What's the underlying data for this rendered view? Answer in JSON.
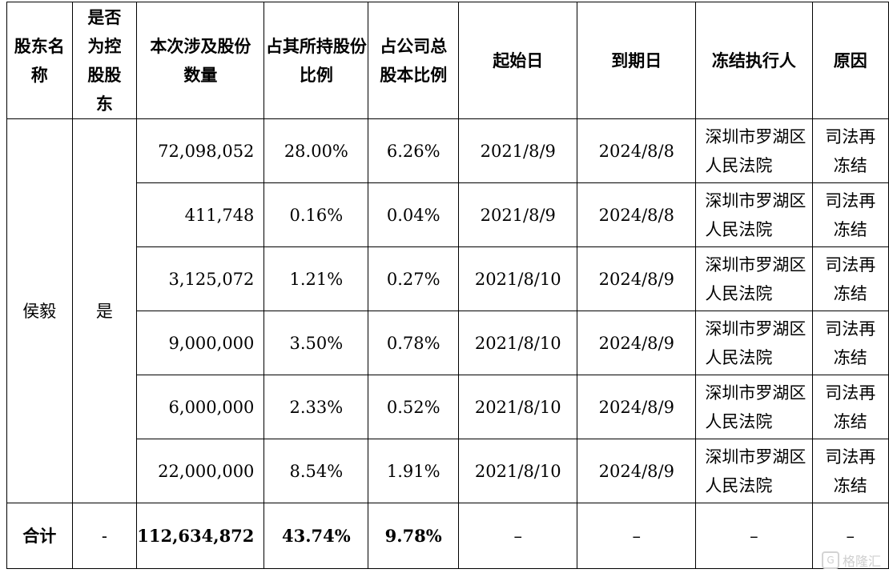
{
  "headers": {
    "holder": "股东名称",
    "controlling": "是否为控股股东",
    "shares": "本次涉及股份数量",
    "pct_held": "占其所持股份比例",
    "pct_total": "占公司总股本比例",
    "start": "起始日",
    "end": "到期日",
    "executor": "冻结执行人",
    "reason": "原因"
  },
  "holder_name": "侯毅",
  "is_controlling": "是",
  "rows": [
    {
      "shares": "72,098,052",
      "pct_held": "28.00%",
      "pct_total": "6.26%",
      "start": "2021/8/9",
      "end": "2024/8/8",
      "executor": "深圳市罗湖区人民法院",
      "reason": "司法再冻结"
    },
    {
      "shares": "411,748",
      "pct_held": "0.16%",
      "pct_total": "0.04%",
      "start": "2021/8/9",
      "end": "2024/8/8",
      "executor": "深圳市罗湖区人民法院",
      "reason": "司法再冻结"
    },
    {
      "shares": "3,125,072",
      "pct_held": "1.21%",
      "pct_total": "0.27%",
      "start": "2021/8/10",
      "end": "2024/8/9",
      "executor": "深圳市罗湖区人民法院",
      "reason": "司法再冻结"
    },
    {
      "shares": "9,000,000",
      "pct_held": "3.50%",
      "pct_total": "0.78%",
      "start": "2021/8/10",
      "end": "2024/8/9",
      "executor": "深圳市罗湖区人民法院",
      "reason": "司法再冻结"
    },
    {
      "shares": "6,000,000",
      "pct_held": "2.33%",
      "pct_total": "0.52%",
      "start": "2021/8/10",
      "end": "2024/8/9",
      "executor": "深圳市罗湖区人民法院",
      "reason": "司法再冻结"
    },
    {
      "shares": "22,000,000",
      "pct_held": "8.54%",
      "pct_total": "1.91%",
      "start": "2021/8/10",
      "end": "2024/8/9",
      "executor": "深圳市罗湖区人民法院",
      "reason": "司法再冻结"
    }
  ],
  "total": {
    "label": "合计",
    "controlling": "-",
    "shares": "112,634,872",
    "pct_held": "43.74%",
    "pct_total": "9.78%",
    "start": "–",
    "end": "–",
    "executor": "–",
    "reason": "–"
  },
  "watermark": {
    "text": "格隆汇",
    "icon": "g-logo-icon"
  }
}
